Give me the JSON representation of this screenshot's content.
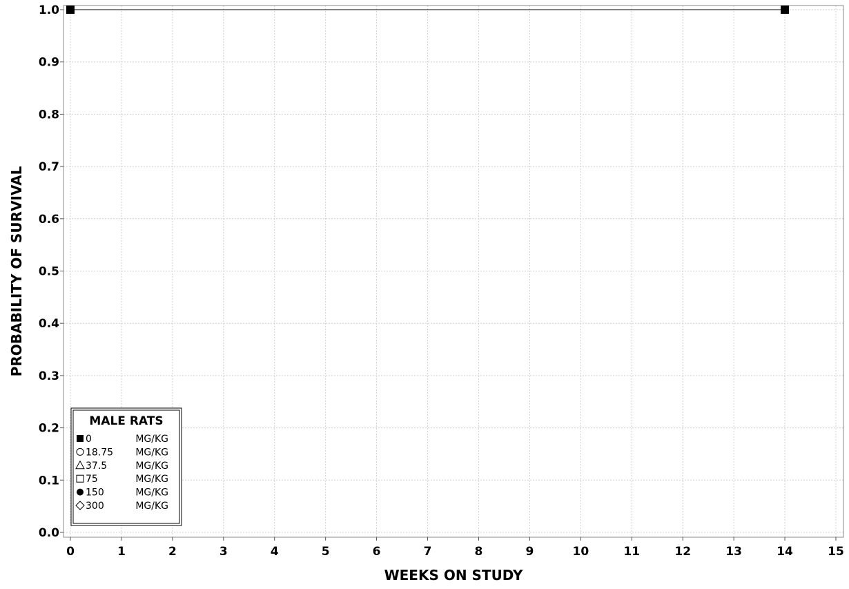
{
  "chart_data": {
    "type": "line",
    "title": "",
    "xlabel": "WEEKS ON STUDY",
    "ylabel": "PROBABILITY OF SURVIVAL",
    "xlim": [
      0,
      15
    ],
    "ylim": [
      0.0,
      1.0
    ],
    "x_ticks": [
      "0",
      "1",
      "2",
      "3",
      "4",
      "5",
      "6",
      "7",
      "8",
      "9",
      "10",
      "11",
      "12",
      "13",
      "14",
      "15"
    ],
    "y_ticks": [
      "0.0",
      "0.1",
      "0.2",
      "0.3",
      "0.4",
      "0.5",
      "0.6",
      "0.7",
      "0.8",
      "0.9",
      "1.0"
    ],
    "grid": true,
    "legend": {
      "title": "MALE RATS",
      "placement": "bottom-left",
      "entries": [
        {
          "symbol": "filled-square",
          "dose": "0",
          "unit": "MG/KG"
        },
        {
          "symbol": "open-circle",
          "dose": "18.75",
          "unit": "MG/KG"
        },
        {
          "symbol": "open-triangle",
          "dose": "37.5",
          "unit": "MG/KG"
        },
        {
          "symbol": "open-square",
          "dose": "75",
          "unit": "MG/KG"
        },
        {
          "symbol": "filled-circle",
          "dose": "150",
          "unit": "MG/KG"
        },
        {
          "symbol": "open-diamond",
          "dose": "300",
          "unit": "MG/KG"
        }
      ]
    },
    "series": [
      {
        "symbol": "filled-square",
        "x": [
          0,
          14
        ],
        "y": [
          1.0,
          1.0
        ],
        "markers": [
          0,
          14
        ]
      }
    ]
  }
}
